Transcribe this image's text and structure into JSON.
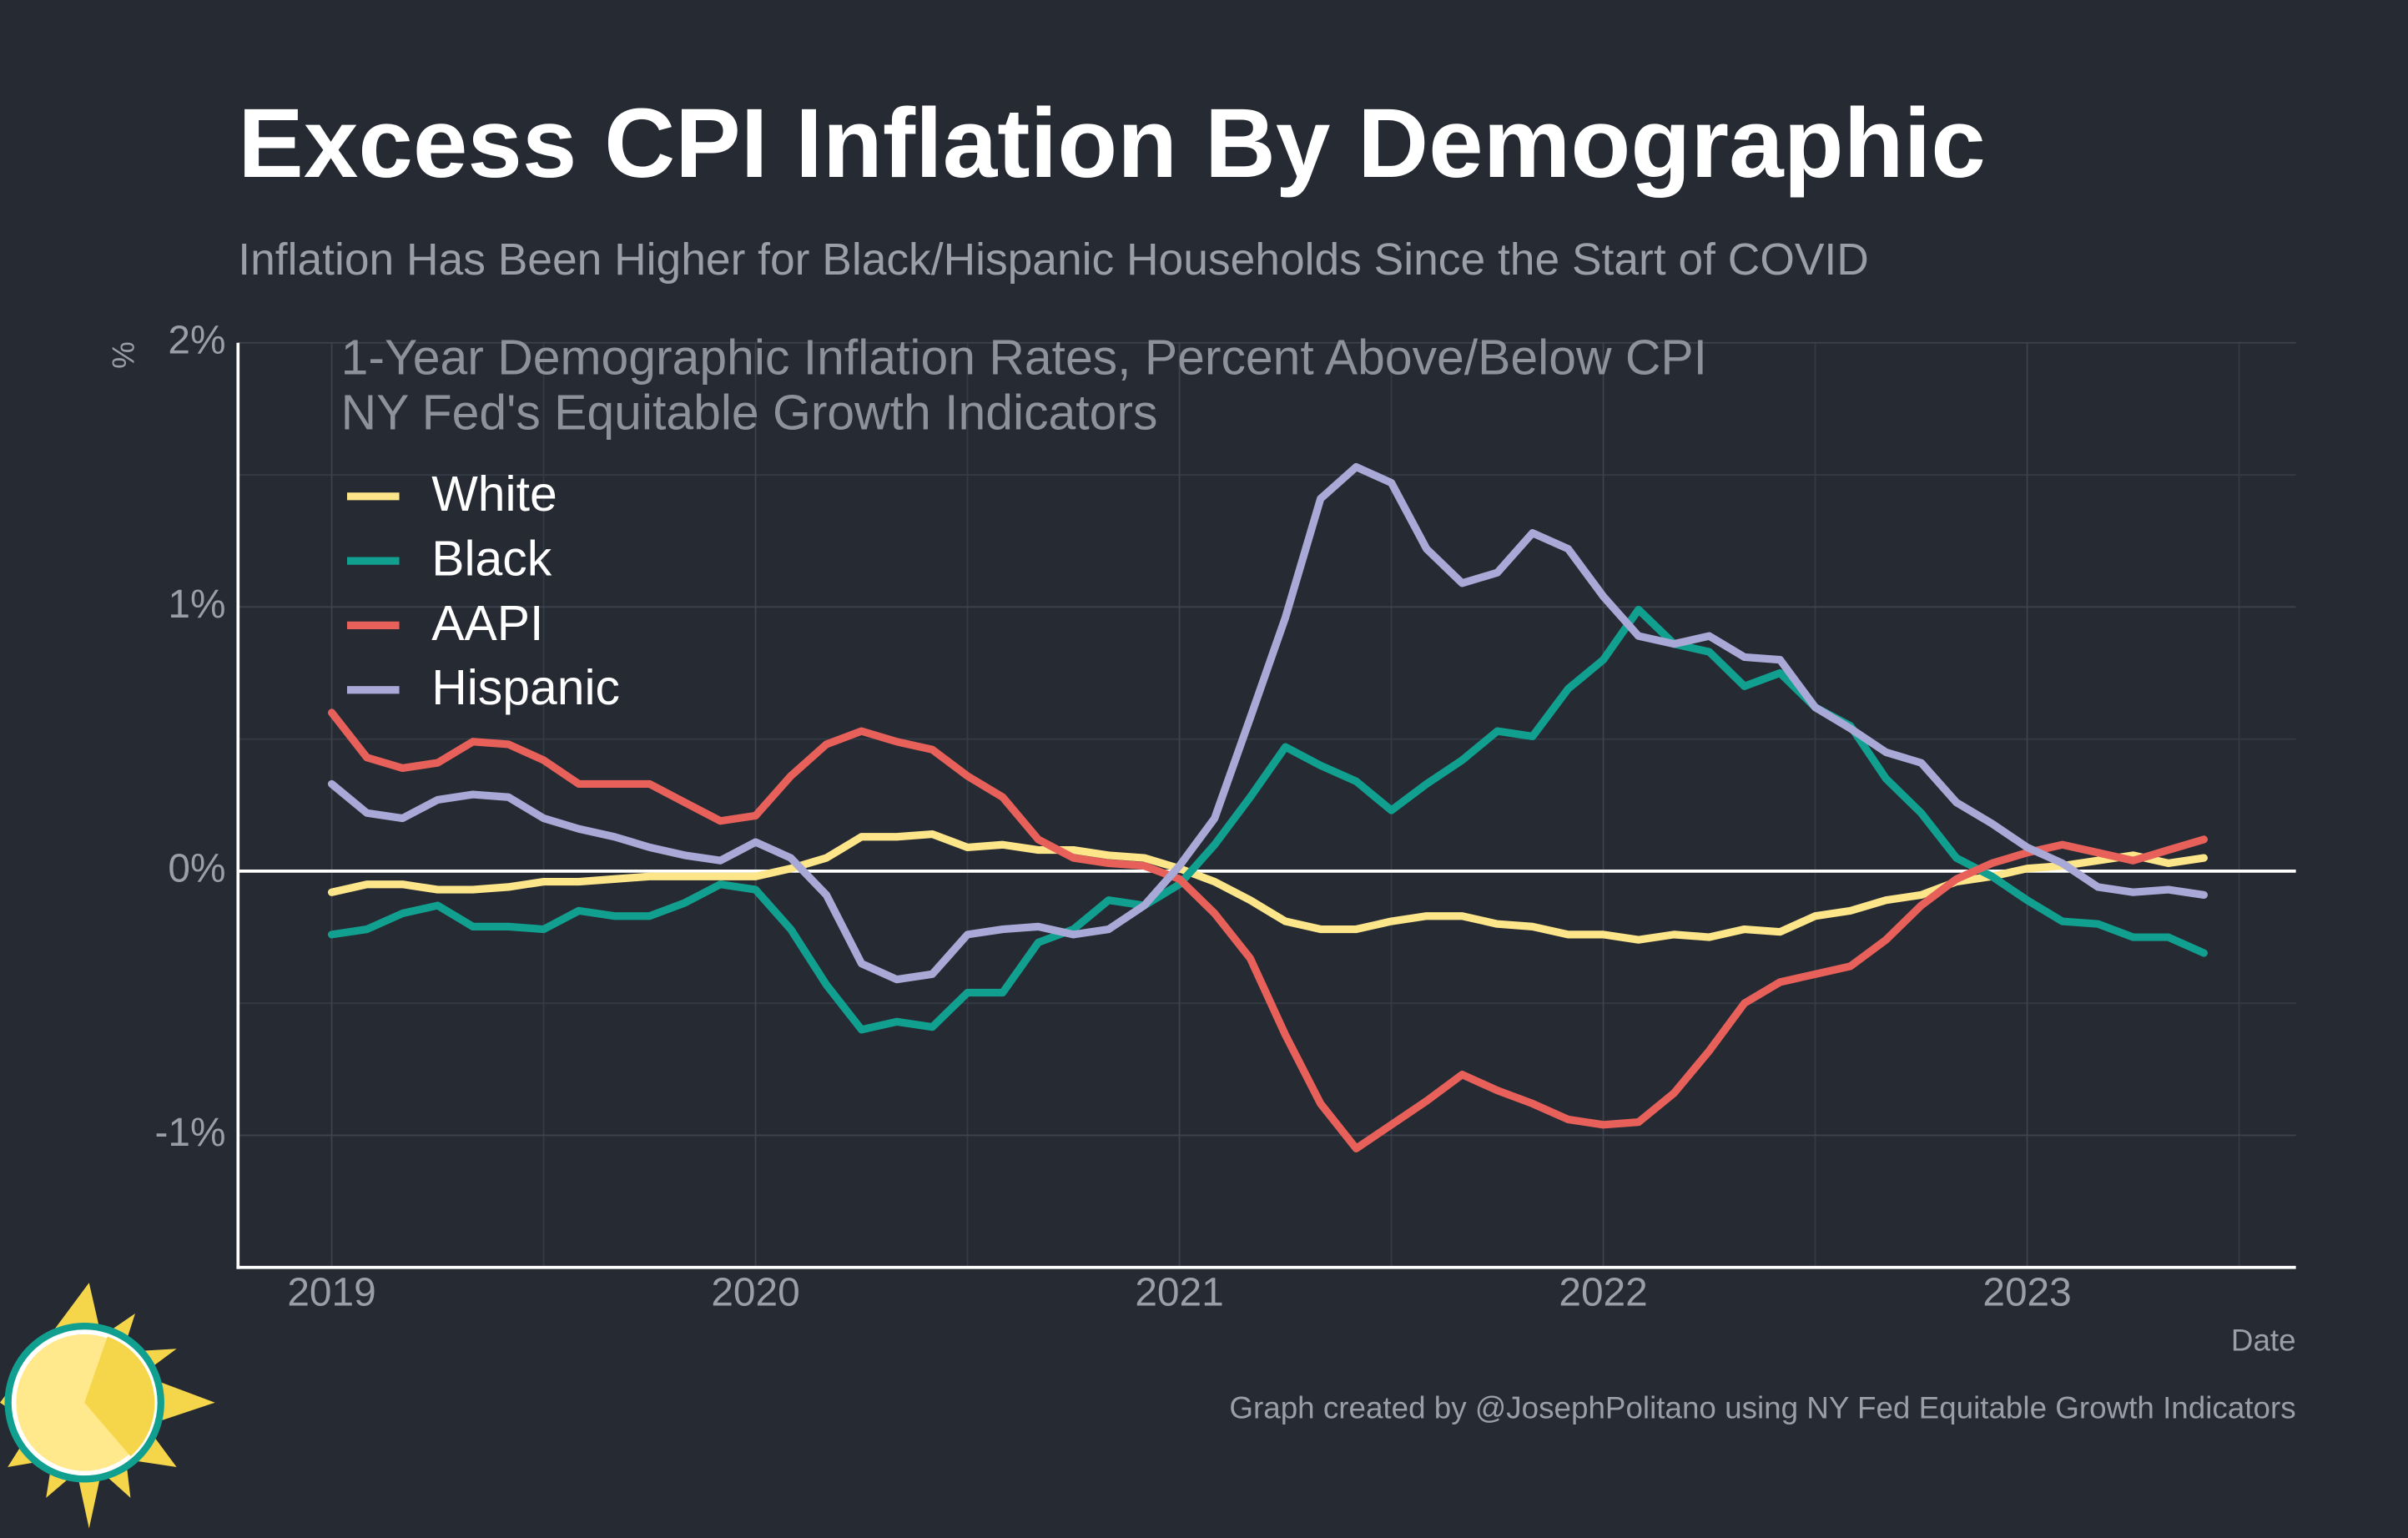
{
  "chart_data": {
    "type": "line",
    "title": "Excess CPI Inflation By Demographic",
    "subtitle": "Inflation Has Been Higher for Black/Hispanic Households Since the Start of COVID",
    "annotations": [
      "1-Year Demographic Inflation Rates, Percent Above/Below CPI",
      "NY Fed's Equitable Growth Indicators"
    ],
    "y_label": "%",
    "x_label": "Date",
    "caption": "Graph created by @JosephPolitano using NY Fed Equitable Growth Indicators",
    "x": [
      2019,
      2019.083,
      2019.167,
      2019.25,
      2019.333,
      2019.417,
      2019.5,
      2019.583,
      2019.667,
      2019.75,
      2019.833,
      2019.917,
      2020,
      2020.083,
      2020.167,
      2020.25,
      2020.333,
      2020.417,
      2020.5,
      2020.583,
      2020.667,
      2020.75,
      2020.833,
      2020.917,
      2021,
      2021.083,
      2021.167,
      2021.25,
      2021.333,
      2021.417,
      2021.5,
      2021.583,
      2021.667,
      2021.75,
      2021.833,
      2021.917,
      2022,
      2022.083,
      2022.167,
      2022.25,
      2022.333,
      2022.417,
      2022.5,
      2022.583,
      2022.667,
      2022.75,
      2022.833,
      2022.917,
      2023,
      2023.083,
      2023.167,
      2023.25,
      2023.333,
      2023.417
    ],
    "series": [
      {
        "name": "White",
        "color": "#fde58a",
        "values": [
          -0.08,
          -0.05,
          -0.05,
          -0.07,
          -0.07,
          -0.06,
          -0.04,
          -0.04,
          -0.03,
          -0.02,
          -0.02,
          -0.02,
          -0.02,
          0.01,
          0.05,
          0.13,
          0.13,
          0.14,
          0.09,
          0.1,
          0.08,
          0.08,
          0.06,
          0.05,
          0.01,
          -0.04,
          -0.11,
          -0.19,
          -0.22,
          -0.22,
          -0.19,
          -0.17,
          -0.17,
          -0.2,
          -0.21,
          -0.24,
          -0.24,
          -0.26,
          -0.24,
          -0.25,
          -0.22,
          -0.23,
          -0.17,
          -0.15,
          -0.11,
          -0.09,
          -0.04,
          -0.02,
          0.01,
          0.02,
          0.04,
          0.06,
          0.03,
          0.05
        ]
      },
      {
        "name": "Black",
        "color": "#11a08f",
        "values": [
          -0.24,
          -0.22,
          -0.16,
          -0.13,
          -0.21,
          -0.21,
          -0.22,
          -0.15,
          -0.17,
          -0.17,
          -0.12,
          -0.05,
          -0.07,
          -0.22,
          -0.43,
          -0.6,
          -0.57,
          -0.59,
          -0.46,
          -0.46,
          -0.27,
          -0.22,
          -0.11,
          -0.13,
          -0.05,
          0.1,
          0.28,
          0.47,
          0.4,
          0.34,
          0.23,
          0.33,
          0.42,
          0.53,
          0.51,
          0.69,
          0.8,
          0.99,
          0.86,
          0.83,
          0.7,
          0.75,
          0.62,
          0.55,
          0.35,
          0.22,
          0.05,
          -0.02,
          -0.11,
          -0.19,
          -0.2,
          -0.25,
          -0.25,
          -0.31
        ]
      },
      {
        "name": "AAPI",
        "color": "#e8605a",
        "values": [
          0.6,
          0.43,
          0.39,
          0.41,
          0.49,
          0.48,
          0.42,
          0.33,
          0.33,
          0.33,
          0.26,
          0.19,
          0.21,
          0.36,
          0.48,
          0.53,
          0.49,
          0.46,
          0.36,
          0.28,
          0.12,
          0.05,
          0.03,
          0.02,
          -0.03,
          -0.16,
          -0.33,
          -0.62,
          -0.88,
          -1.05,
          -0.96,
          -0.87,
          -0.77,
          -0.83,
          -0.88,
          -0.94,
          -0.96,
          -0.95,
          -0.84,
          -0.68,
          -0.5,
          -0.42,
          -0.39,
          -0.36,
          -0.26,
          -0.13,
          -0.03,
          0.03,
          0.07,
          0.1,
          0.07,
          0.04,
          0.08,
          0.12
        ]
      },
      {
        "name": "Hispanic",
        "color": "#a8a9d6",
        "values": [
          0.33,
          0.22,
          0.2,
          0.27,
          0.29,
          0.28,
          0.2,
          0.16,
          0.13,
          0.09,
          0.06,
          0.04,
          0.11,
          0.05,
          -0.09,
          -0.35,
          -0.41,
          -0.39,
          -0.24,
          -0.22,
          -0.21,
          -0.24,
          -0.22,
          -0.13,
          0.02,
          0.2,
          0.58,
          0.96,
          1.41,
          1.53,
          1.47,
          1.22,
          1.09,
          1.13,
          1.28,
          1.22,
          1.04,
          0.89,
          0.86,
          0.89,
          0.81,
          0.8,
          0.62,
          0.54,
          0.45,
          0.41,
          0.26,
          0.18,
          0.09,
          0.03,
          -0.06,
          -0.08,
          -0.07,
          -0.09
        ]
      }
    ],
    "xlim": [
      2018.779,
      2023.634
    ],
    "xticks": [
      2019,
      2020,
      2021,
      2022,
      2023
    ],
    "minor_xticks": [
      2019.5,
      2020.5,
      2021.5,
      2022.5,
      2023.5
    ],
    "ylim": [
      -1.5,
      2
    ],
    "yticks": [
      {
        "value": -1,
        "label": "-1%"
      },
      {
        "value": 0,
        "label": "0%"
      },
      {
        "value": 1,
        "label": "1%"
      },
      {
        "value": 2,
        "label": "2%"
      }
    ],
    "minor_yticks": [
      -0.5,
      0.5,
      1.5
    ],
    "reference_line": 0,
    "grid": true,
    "legend": "upper left"
  }
}
